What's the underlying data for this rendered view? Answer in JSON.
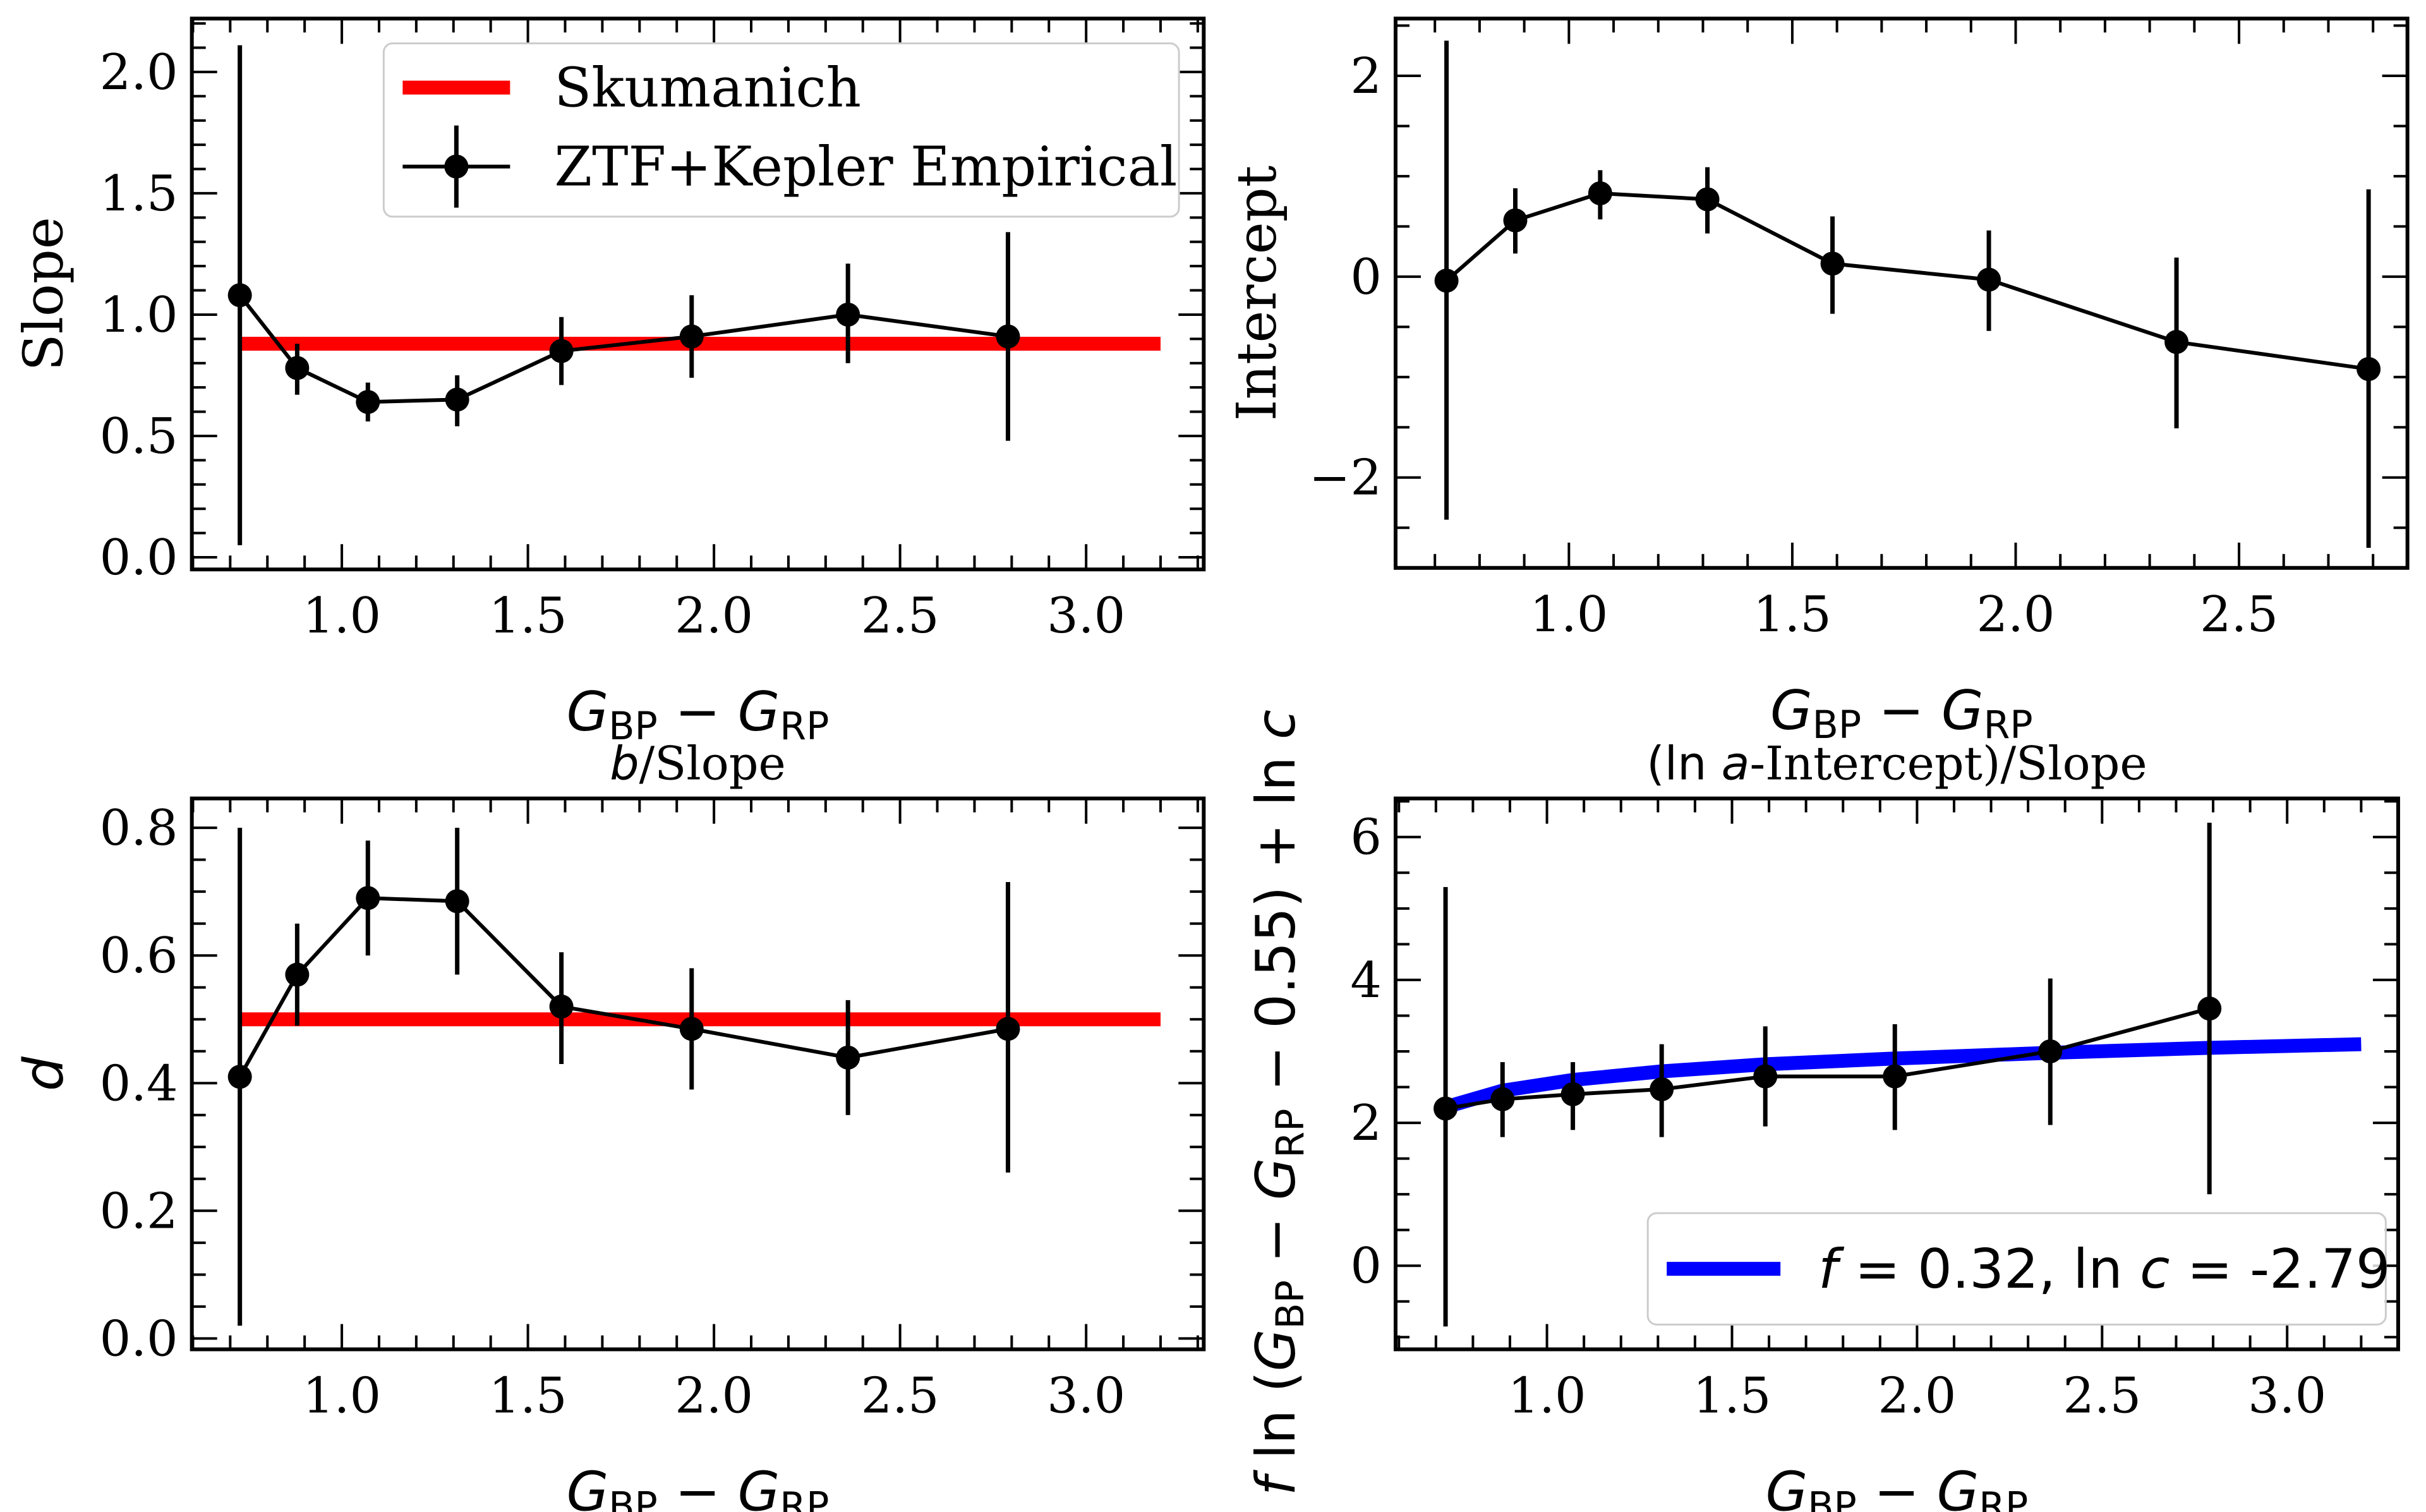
{
  "chart_data": [
    {
      "type": "line",
      "panel": "top-left",
      "title": "",
      "xlabel": "G_BP − G_RP",
      "ylabel": "Slope",
      "xlim": [
        0.597,
        3.316
      ],
      "ylim": [
        -0.05,
        2.22
      ],
      "xticks": [
        1.0,
        1.5,
        2.0,
        2.5,
        3.0
      ],
      "xtick_labels": [
        "1.0",
        "1.5",
        "2.0",
        "2.5",
        "3.0"
      ],
      "yticks": [
        0.0,
        0.5,
        1.0,
        1.5,
        2.0
      ],
      "ytick_labels": [
        "0.0",
        "0.5",
        "1.0",
        "1.5",
        "2.0"
      ],
      "legend_position": "top-right",
      "legend": [
        {
          "label": "Skumanich",
          "style": "red-line"
        },
        {
          "label": "ZTF+Kepler Empirical",
          "style": "black-errorbar"
        }
      ],
      "series": [
        {
          "name": "ZTF+Kepler Empirical",
          "color": "#000000",
          "x": [
            0.726,
            0.88,
            1.07,
            1.31,
            1.59,
            1.94,
            2.36,
            2.79
          ],
          "y": [
            1.08,
            0.78,
            0.64,
            0.65,
            0.85,
            0.91,
            1.0,
            0.91
          ],
          "y_low": [
            0.05,
            0.67,
            0.56,
            0.54,
            0.71,
            0.74,
            0.8,
            0.48
          ],
          "y_high": [
            2.11,
            0.88,
            0.72,
            0.75,
            0.99,
            1.08,
            1.21,
            1.34
          ]
        },
        {
          "name": "Skumanich",
          "color": "#ff0000",
          "x": [
            0.726,
            3.2
          ],
          "y": [
            0.88,
            0.88
          ]
        }
      ]
    },
    {
      "type": "line",
      "panel": "top-right",
      "title": "",
      "xlabel": "G_BP − G_RP",
      "ylabel": "Intercept",
      "xlim": [
        0.612,
        2.877
      ],
      "ylim": [
        -2.9,
        2.57
      ],
      "xticks": [
        1.0,
        1.5,
        2.0,
        2.5
      ],
      "xtick_labels": [
        "1.0",
        "1.5",
        "2.0",
        "2.5"
      ],
      "yticks": [
        -2,
        0,
        2
      ],
      "ytick_labels": [
        "−2",
        "0",
        "2"
      ],
      "series": [
        {
          "name": "ZTF+Kepler Empirical",
          "color": "#000000",
          "x": [
            0.726,
            0.88,
            1.07,
            1.31,
            1.59,
            1.94,
            2.36,
            2.79
          ],
          "y": [
            -0.04,
            0.56,
            0.83,
            0.77,
            0.13,
            -0.03,
            -0.65,
            -0.92
          ],
          "y_low": [
            -2.42,
            0.23,
            0.57,
            0.43,
            -0.37,
            -0.54,
            -1.51,
            -2.7
          ],
          "y_high": [
            2.35,
            0.88,
            1.06,
            1.09,
            0.6,
            0.46,
            0.19,
            0.87
          ]
        }
      ]
    },
    {
      "type": "line",
      "panel": "bottom-left",
      "title": "b/Slope",
      "xlabel": "G_BP − G_RP",
      "ylabel": "d",
      "xlim": [
        0.597,
        3.316
      ],
      "ylim": [
        -0.017,
        0.846
      ],
      "xticks": [
        1.0,
        1.5,
        2.0,
        2.5,
        3.0
      ],
      "xtick_labels": [
        "1.0",
        "1.5",
        "2.0",
        "2.5",
        "3.0"
      ],
      "yticks": [
        0.0,
        0.2,
        0.4,
        0.6,
        0.8
      ],
      "ytick_labels": [
        "0.0",
        "0.2",
        "0.4",
        "0.6",
        "0.8"
      ],
      "series": [
        {
          "name": "ZTF+Kepler Empirical",
          "color": "#000000",
          "x": [
            0.726,
            0.88,
            1.07,
            1.31,
            1.59,
            1.94,
            2.36,
            2.79
          ],
          "y": [
            0.41,
            0.57,
            0.69,
            0.685,
            0.52,
            0.485,
            0.44,
            0.485
          ],
          "y_low": [
            0.02,
            0.49,
            0.6,
            0.57,
            0.43,
            0.39,
            0.35,
            0.26
          ],
          "y_high": [
            0.8,
            0.65,
            0.78,
            0.8,
            0.605,
            0.58,
            0.53,
            0.715
          ]
        },
        {
          "name": "Skumanich",
          "color": "#ff0000",
          "x": [
            0.726,
            3.2
          ],
          "y": [
            0.5,
            0.5
          ]
        }
      ]
    },
    {
      "type": "line",
      "panel": "bottom-right",
      "title": "(ln a-Intercept)/Slope",
      "xlabel": "G_BP − G_RP",
      "ylabel": "f ln (G_BP − G_RP − 0.55) + ln c",
      "xlim": [
        0.591,
        3.3
      ],
      "ylim": [
        -1.17,
        6.54
      ],
      "xticks": [
        1.0,
        1.5,
        2.0,
        2.5,
        3.0
      ],
      "xtick_labels": [
        "1.0",
        "1.5",
        "2.0",
        "2.5",
        "3.0"
      ],
      "yticks": [
        0,
        2,
        4,
        6
      ],
      "ytick_labels": [
        "0",
        "2",
        "4",
        "6"
      ],
      "legend_position": "bottom-right",
      "legend": [
        {
          "label": "f = 0.32, ln c = -2.79",
          "style": "blue-line"
        }
      ],
      "series": [
        {
          "name": "ZTF+Kepler Empirical",
          "color": "#000000",
          "x": [
            0.726,
            0.88,
            1.07,
            1.31,
            1.59,
            1.94,
            2.36,
            2.79
          ],
          "y": [
            2.2,
            2.33,
            2.4,
            2.47,
            2.65,
            2.65,
            3.0,
            3.6
          ],
          "y_low": [
            -0.85,
            1.8,
            1.9,
            1.8,
            1.95,
            1.9,
            1.97,
            1.0
          ],
          "y_high": [
            5.3,
            2.85,
            2.85,
            3.1,
            3.35,
            3.38,
            4.02,
            6.2
          ]
        },
        {
          "name": "f = 0.32, ln c = -2.79",
          "color": "#0000ff",
          "x": [
            0.726,
            0.88,
            1.07,
            1.31,
            1.59,
            1.94,
            2.36,
            2.79,
            3.2
          ],
          "y": [
            2.22,
            2.45,
            2.6,
            2.72,
            2.82,
            2.9,
            2.98,
            3.05,
            3.1
          ]
        }
      ]
    }
  ]
}
